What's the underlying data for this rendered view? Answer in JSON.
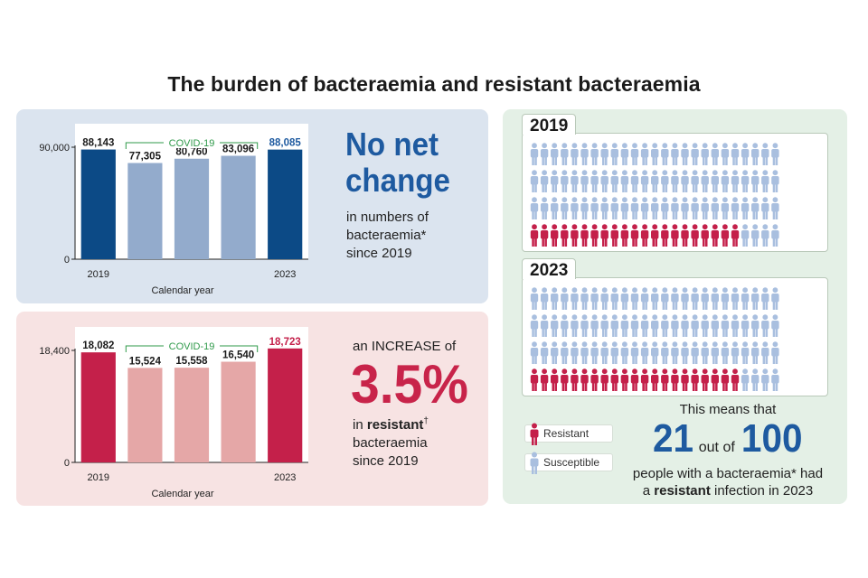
{
  "title": "The burden of bacteraemia and resistant bacteraemia",
  "colors": {
    "blue_dark": "#0c4a86",
    "blue_light": "#93abcc",
    "red_dark": "#c4204a",
    "red_light": "#e5a7a7",
    "headline_blue": "#1e5aa0",
    "headline_red": "#c8244a",
    "covid_green": "#2f9a4a",
    "person_red": "#c4204a",
    "person_blue": "#a9bfdf"
  },
  "chart_data": [
    {
      "type": "bar",
      "title": "",
      "xlabel": "Calendar year",
      "ylabel": "",
      "categories": [
        "2019",
        "2020",
        "2021",
        "2022",
        "2023"
      ],
      "tick_labels": [
        "2019",
        "",
        "",
        "",
        "2023"
      ],
      "values": [
        88143,
        77305,
        80760,
        83096,
        88085
      ],
      "value_labels": [
        "88,143",
        "77,305",
        "80,760",
        "83,096",
        "88,085"
      ],
      "ylim": [
        0,
        90000
      ],
      "yticks": [
        0,
        90000
      ],
      "ytick_labels": [
        "0",
        "90,000"
      ],
      "covid_label": "COVID-19",
      "covid_span": [
        "2020",
        "2022"
      ]
    },
    {
      "type": "bar",
      "title": "",
      "xlabel": "Calendar year",
      "ylabel": "",
      "categories": [
        "2019",
        "2020",
        "2021",
        "2022",
        "2023"
      ],
      "tick_labels": [
        "2019",
        "",
        "",
        "",
        "2023"
      ],
      "values": [
        18082,
        15524,
        15558,
        16540,
        18723
      ],
      "value_labels": [
        "18,082",
        "15,524",
        "15,558",
        "16,540",
        "18,723"
      ],
      "ylim": [
        0,
        18400
      ],
      "yticks": [
        0,
        18400
      ],
      "ytick_labels": [
        "0",
        "18,400"
      ],
      "covid_label": "COVID-19",
      "covid_span": [
        "2020",
        "2022"
      ]
    }
  ],
  "panel1": {
    "headline_line1": "No net",
    "headline_line2": "change",
    "sub_line1": "in numbers of",
    "sub_line2": "bacteraemia*",
    "sub_line3": "since 2019"
  },
  "panel2": {
    "intro": "an INCREASE of",
    "percent": "3.5%",
    "sub_prefix": "in",
    "sub_bold": "resistant",
    "sub_dagger": "†",
    "sub_line2": "bacteraemia",
    "sub_line3": "since 2019"
  },
  "pictogram": {
    "years": [
      {
        "label": "2019",
        "resistant": 21,
        "total": 100
      },
      {
        "label": "2023",
        "resistant": 21,
        "total": 100
      }
    ],
    "legend_resistant": "Resistant",
    "legend_susceptible": "Susceptible"
  },
  "summary": {
    "line1": "This means that",
    "num1": "21",
    "out_of": "out of",
    "num2": "100",
    "line3": "people with a bacteraemia* had",
    "line4_a": "a",
    "line4_bold": "resistant",
    "line4_b": "infection in 2023"
  }
}
